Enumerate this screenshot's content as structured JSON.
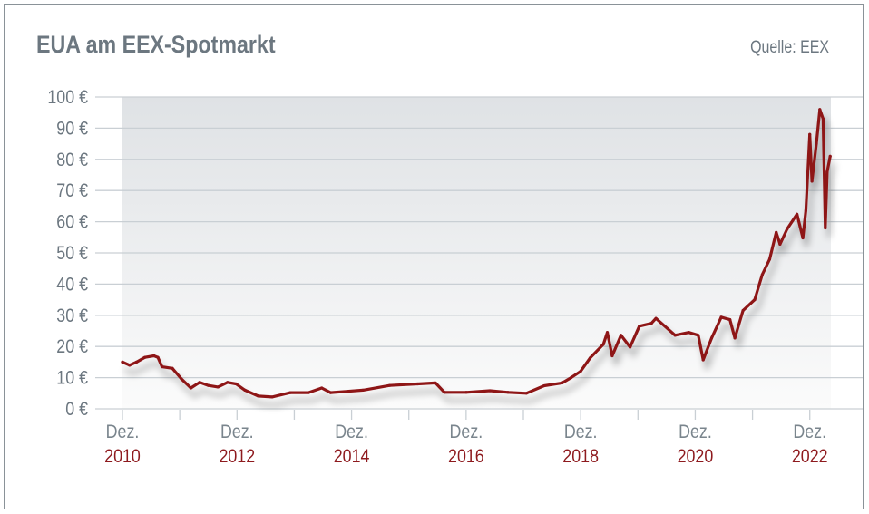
{
  "chart_data": {
    "type": "line",
    "title": "EUA am EEX-Spotmarkt",
    "source": "Quelle: EEX",
    "xlabel": "",
    "ylabel": "",
    "ylim": [
      0,
      100
    ],
    "y_ticks": [
      "0 €",
      "10 €",
      "20 €",
      "30 €",
      "40 €",
      "50 €",
      "60 €",
      "70 €",
      "80 €",
      "90 €",
      "100 €"
    ],
    "x_ticks": [
      {
        "month": "Dez.",
        "year": "2010"
      },
      {
        "month": "Dez.",
        "year": "2012"
      },
      {
        "month": "Dez.",
        "year": "2014"
      },
      {
        "month": "Dez.",
        "year": "2016"
      },
      {
        "month": "Dez.",
        "year": "2018"
      },
      {
        "month": "Dez.",
        "year": "2020"
      },
      {
        "month": "Dez.",
        "year": "2022"
      }
    ],
    "grid": true,
    "legend": "none",
    "colors": {
      "line": "#8e1518",
      "year_labels": "#8e1a1e",
      "text": "#6c7780",
      "grid": "#c9cfd4"
    },
    "series": [
      {
        "x": [
          "2010-12-01",
          "2011-01-15",
          "2011-03-01",
          "2011-04-23",
          "2011-06-20",
          "2011-07-15",
          "2011-08-10",
          "2011-10-15",
          "2011-12-12",
          "2012-02-10",
          "2012-04-06",
          "2012-06-01",
          "2012-08-01",
          "2012-10-01",
          "2012-11-25",
          "2013-01-20",
          "2013-04-15",
          "2013-07-12",
          "2013-11-06",
          "2014-03-01",
          "2014-05-25",
          "2014-07-20",
          "2015-02-12",
          "2015-08-01",
          "2016-01-25",
          "2016-05-19",
          "2016-07-15",
          "2016-12-01",
          "2017-05-01",
          "2017-08-25",
          "2017-12-20",
          "2018-04-12",
          "2018-08-05",
          "2018-10-01",
          "2018-11-30",
          "2019-01-30",
          "2019-04-25",
          "2019-05-20",
          "2019-06-20",
          "2019-08-15",
          "2019-10-12",
          "2019-12-10",
          "2020-02-25",
          "2020-03-25",
          "2020-07-25",
          "2020-10-20",
          "2020-12-20",
          "2021-01-20",
          "2021-03-15",
          "2021-05-15",
          "2021-07-10",
          "2021-08-10",
          "2021-10-01",
          "2021-12-15",
          "2022-02-01",
          "2022-03-20",
          "2022-05-01",
          "2022-05-25",
          "2022-07-10",
          "2022-09-10",
          "2022-10-18",
          "2022-11-06",
          "2022-12-01",
          "2022-12-15",
          "2023-01-12",
          "2023-02-03",
          "2023-02-24",
          "2023-03-10",
          "2023-03-22",
          "2023-04-10"
        ],
        "values": [
          15,
          14,
          15,
          16.5,
          17,
          16.5,
          13.5,
          13,
          9.6,
          6.7,
          8.5,
          7.5,
          7,
          8.5,
          8,
          6,
          4.1,
          3.8,
          5.2,
          5.2,
          6.7,
          5.2,
          6,
          7.5,
          8,
          8.3,
          5.3,
          5.3,
          5.8,
          5.3,
          5,
          7.4,
          8.3,
          10,
          12,
          16.3,
          20.7,
          24.5,
          17,
          23.6,
          19.8,
          26.5,
          27.4,
          29,
          23.6,
          24.5,
          23.6,
          15.7,
          22.7,
          29.4,
          28.6,
          22.7,
          31.5,
          35,
          43,
          48,
          56.6,
          52.8,
          57.7,
          62.4,
          54.8,
          63.6,
          88,
          73,
          85,
          96,
          93,
          58,
          76,
          81
        ]
      }
    ]
  }
}
